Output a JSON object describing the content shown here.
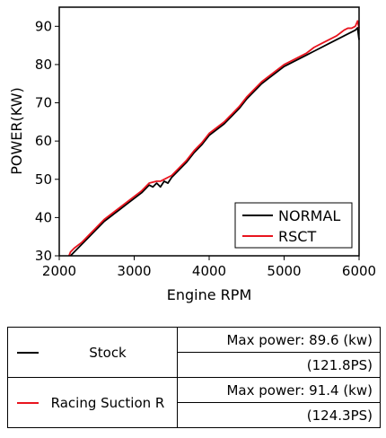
{
  "chart_data": {
    "type": "line",
    "title": "",
    "xlabel": "Engine RPM",
    "ylabel": "POWER(KW)",
    "xlim": [
      2000,
      6000
    ],
    "ylim": [
      30,
      95
    ],
    "xticks": [
      2000,
      3000,
      4000,
      5000,
      6000
    ],
    "yticks": [
      30,
      40,
      50,
      60,
      70,
      80,
      90
    ],
    "grid": false,
    "legend_position": "bottom-right",
    "series": [
      {
        "name": "NORMAL",
        "color": "#000000",
        "x": [
          2150,
          2200,
          2300,
          2400,
          2500,
          2600,
          2700,
          2800,
          2900,
          3000,
          3100,
          3200,
          3250,
          3300,
          3350,
          3400,
          3450,
          3500,
          3600,
          3700,
          3800,
          3900,
          4000,
          4100,
          4200,
          4300,
          4400,
          4500,
          4600,
          4700,
          4800,
          4900,
          5000,
          5100,
          5200,
          5300,
          5400,
          5500,
          5600,
          5700,
          5800,
          5850,
          5900,
          5950,
          5980,
          6000
        ],
        "y": [
          30.0,
          31.0,
          33.0,
          35.0,
          37.0,
          39.0,
          40.5,
          42.0,
          43.5,
          45.0,
          46.5,
          48.5,
          48.0,
          49.0,
          48.0,
          49.5,
          49.0,
          50.5,
          52.5,
          54.5,
          57.0,
          59.0,
          61.5,
          63.0,
          64.5,
          66.5,
          68.5,
          71.0,
          73.0,
          75.0,
          76.5,
          78.0,
          79.5,
          80.5,
          81.5,
          82.5,
          83.5,
          84.5,
          85.5,
          86.5,
          87.5,
          88.0,
          88.5,
          89.0,
          89.6,
          86.5
        ]
      },
      {
        "name": "RSCT",
        "color": "#e8141e",
        "x": [
          2130,
          2150,
          2200,
          2300,
          2400,
          2500,
          2600,
          2700,
          2800,
          2900,
          3000,
          3100,
          3200,
          3300,
          3350,
          3400,
          3500,
          3600,
          3700,
          3800,
          3900,
          4000,
          4100,
          4200,
          4300,
          4400,
          4500,
          4600,
          4700,
          4800,
          4900,
          5000,
          5100,
          5200,
          5300,
          5400,
          5500,
          5600,
          5700,
          5800,
          5850,
          5900,
          5950,
          5980,
          6000
        ],
        "y": [
          30.0,
          31.0,
          32.0,
          33.5,
          35.5,
          37.5,
          39.5,
          41.0,
          42.5,
          44.0,
          45.5,
          47.0,
          49.0,
          49.5,
          49.5,
          50.0,
          51.0,
          53.0,
          55.0,
          57.5,
          59.5,
          62.0,
          63.5,
          65.0,
          67.0,
          69.0,
          71.5,
          73.5,
          75.5,
          77.0,
          78.5,
          80.0,
          81.0,
          82.0,
          83.0,
          84.5,
          85.5,
          86.5,
          87.5,
          89.0,
          89.5,
          89.5,
          90.0,
          91.4,
          89.5
        ]
      }
    ]
  },
  "table": {
    "rows": [
      {
        "name": "Stock",
        "color": "#000000",
        "max_power": "Max power: 89.6 (kw)",
        "ps": "(121.8PS)"
      },
      {
        "name": "Racing Suction R",
        "color": "#e8141e",
        "max_power": "Max power: 91.4 (kw)",
        "ps": "(124.3PS)"
      }
    ]
  }
}
